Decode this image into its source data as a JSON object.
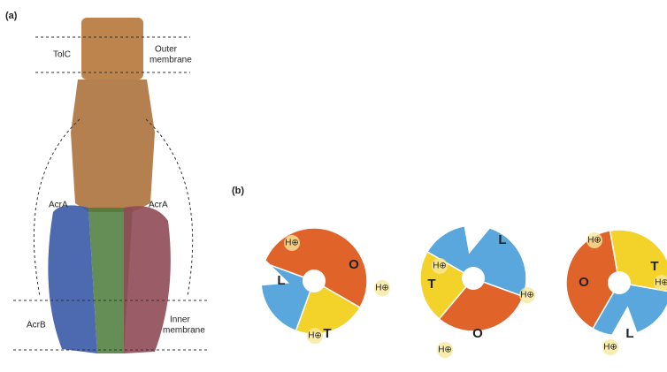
{
  "panel_a": {
    "label": "(a)",
    "tolc": "TolC",
    "outer_membrane": [
      "Outer",
      "membrane"
    ],
    "acra_left": "AcrA",
    "acra_right": "AcrA",
    "acrb": "AcrB",
    "inner_membrane": [
      "Inner",
      "membrane"
    ]
  },
  "panel_b": {
    "label": "(b)",
    "trimers": [
      {
        "segments": [
          "L",
          "O",
          "T"
        ],
        "protons": [
          "H⊕",
          "H⊕",
          "H⊕"
        ]
      },
      {
        "segments": [
          "L",
          "T",
          "O"
        ],
        "protons": [
          "H⊕",
          "H⊕",
          "H⊕"
        ]
      },
      {
        "segments": [
          "O",
          "T",
          "L"
        ],
        "protons": [
          "H⊕",
          "H⊕",
          "H⊕"
        ]
      }
    ]
  }
}
